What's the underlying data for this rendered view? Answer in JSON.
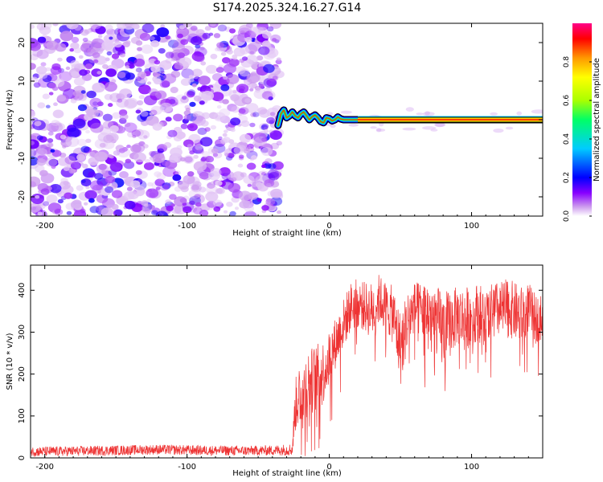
{
  "figure": {
    "title": "S174.2025.324.16.27.G14"
  },
  "chart_data": [
    {
      "type": "heatmap",
      "title": "",
      "xlabel": "Height of straight line (km)",
      "ylabel": "Frequency (Hz)",
      "xlim": [
        -210,
        150
      ],
      "ylim": [
        -25,
        25
      ],
      "xticks": [
        -200,
        -100,
        0,
        100
      ],
      "yticks": [
        -20,
        -10,
        0,
        10,
        20
      ],
      "colorbar": {
        "label": "Normalized spectral amplitude",
        "range": [
          0.0,
          1.0
        ],
        "ticks": [
          0.0,
          0.2,
          0.4,
          0.6,
          0.8
        ],
        "colormap": [
          "#ffffff",
          "#cc99ee",
          "#8800ff",
          "#0000ff",
          "#00ccff",
          "#00ff66",
          "#aaff00",
          "#ffff00",
          "#ff9900",
          "#ff0000",
          "#ff0088"
        ]
      },
      "noise_region": {
        "x": [
          -210,
          -35
        ],
        "amplitude": [
          0.05,
          0.3
        ]
      },
      "carrier_trace": {
        "x": [
          -36,
          -34,
          -32,
          -30,
          -28,
          -26,
          -24,
          -22,
          -20,
          -18,
          -16,
          -14,
          -12,
          -10,
          -8,
          -6,
          -4,
          -2,
          0,
          2,
          4,
          6,
          8,
          10,
          14,
          20,
          40,
          80,
          120,
          150
        ],
        "freq": [
          -1.5,
          1.5,
          2.5,
          0.5,
          1.0,
          2.0,
          1.0,
          0.5,
          1.5,
          2.0,
          1.0,
          0.0,
          0.8,
          1.2,
          0.5,
          -0.5,
          -0.8,
          0.5,
          0.3,
          -0.3,
          0.0,
          0.7,
          0.2,
          0.0,
          0.0,
          0.0,
          0.0,
          0.0,
          0.0,
          0.0
        ]
      }
    },
    {
      "type": "line",
      "title": "",
      "xlabel": "Height of straight line (km)",
      "ylabel": "SNR (10 * v/v)",
      "xlim": [
        -210,
        150
      ],
      "ylim": [
        0,
        460
      ],
      "xticks": [
        -200,
        -100,
        0,
        100
      ],
      "yticks": [
        0,
        100,
        200,
        300,
        400
      ],
      "color": "#ee3333",
      "series": [
        {
          "name": "SNR",
          "x": [
            -210,
            -180,
            -150,
            -120,
            -90,
            -60,
            -40,
            -26,
            -24,
            -22,
            -20,
            -15,
            -10,
            -5,
            0,
            5,
            10,
            15,
            20,
            25,
            30,
            35,
            40,
            45,
            50,
            55,
            60,
            65,
            70,
            75,
            80,
            85,
            90,
            95,
            100,
            105,
            110,
            115,
            120,
            125,
            130,
            135,
            140,
            145,
            150
          ],
          "y": [
            15,
            16,
            18,
            20,
            18,
            17,
            18,
            20,
            120,
            150,
            160,
            180,
            190,
            200,
            240,
            280,
            320,
            360,
            370,
            360,
            350,
            380,
            360,
            340,
            260,
            330,
            360,
            350,
            350,
            330,
            300,
            320,
            340,
            330,
            340,
            350,
            320,
            360,
            350,
            360,
            350,
            340,
            360,
            330,
            340
          ],
          "amplitude": [
            12,
            12,
            12,
            12,
            12,
            12,
            12,
            15,
            60,
            80,
            80,
            80,
            80,
            80,
            70,
            60,
            60,
            60,
            60,
            60,
            70,
            60,
            60,
            70,
            90,
            70,
            60,
            70,
            80,
            80,
            100,
            80,
            70,
            80,
            70,
            70,
            80,
            60,
            70,
            70,
            70,
            70,
            60,
            60,
            50
          ]
        }
      ]
    }
  ]
}
